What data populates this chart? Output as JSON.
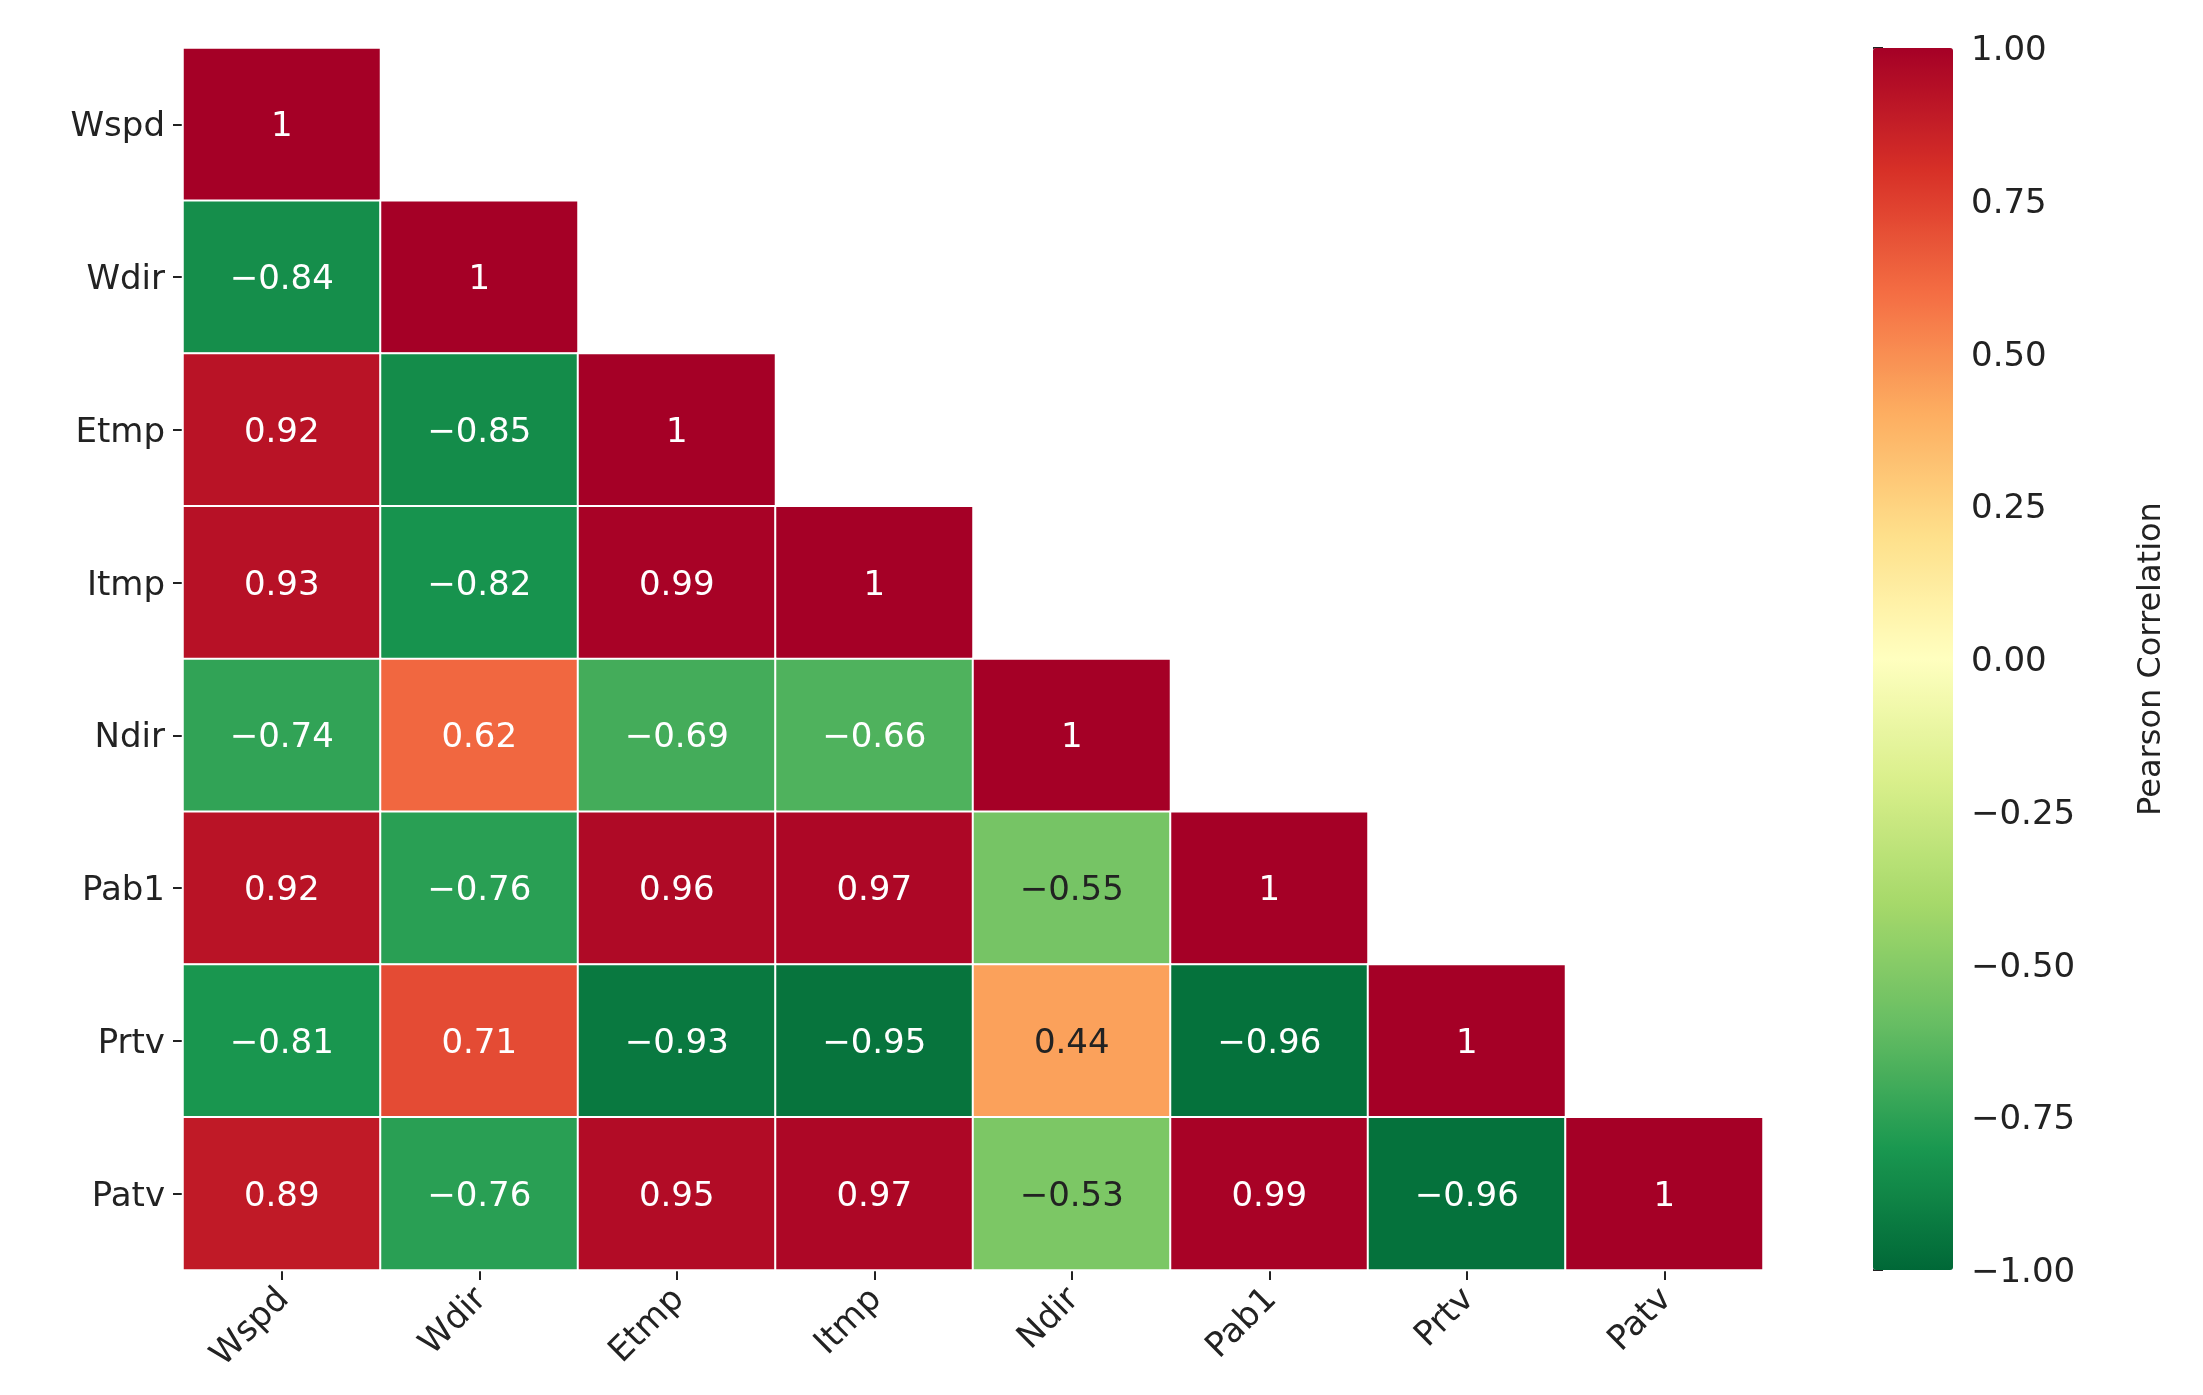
{
  "chart_data": {
    "type": "heatmap",
    "clabel": "Pearson Correlation",
    "categories": [
      "Wspd",
      "Wdir",
      "Etmp",
      "Itmp",
      "Ndir",
      "Pab1",
      "Prtv",
      "Patv"
    ],
    "y_categories": [
      "Wspd",
      "Wdir",
      "Etmp",
      "Itmp",
      "Ndir",
      "Pab1",
      "Prtv",
      "Patv"
    ],
    "cells": [
      [
        1,
        null,
        null,
        null,
        null,
        null,
        null,
        null
      ],
      [
        -0.84,
        1,
        null,
        null,
        null,
        null,
        null,
        null
      ],
      [
        0.92,
        -0.85,
        1,
        null,
        null,
        null,
        null,
        null
      ],
      [
        0.93,
        -0.82,
        0.99,
        1,
        null,
        null,
        null,
        null
      ],
      [
        -0.74,
        0.62,
        -0.69,
        -0.66,
        1,
        null,
        null,
        null
      ],
      [
        0.92,
        -0.76,
        0.96,
        0.97,
        -0.55,
        1,
        null,
        null
      ],
      [
        -0.81,
        0.71,
        -0.93,
        -0.95,
        0.44,
        -0.96,
        1,
        null
      ],
      [
        0.89,
        -0.76,
        0.95,
        0.97,
        -0.53,
        0.99,
        -0.96,
        1
      ]
    ],
    "cell_labels": [
      [
        "1",
        null,
        null,
        null,
        null,
        null,
        null,
        null
      ],
      [
        "−0.84",
        "1",
        null,
        null,
        null,
        null,
        null,
        null
      ],
      [
        "0.92",
        "−0.85",
        "1",
        null,
        null,
        null,
        null,
        null
      ],
      [
        "0.93",
        "−0.82",
        "0.99",
        "1",
        null,
        null,
        null,
        null
      ],
      [
        "−0.74",
        "0.62",
        "−0.69",
        "−0.66",
        "1",
        null,
        null,
        null
      ],
      [
        "0.92",
        "−0.76",
        "0.96",
        "0.97",
        "−0.55",
        "1",
        null,
        null
      ],
      [
        "−0.81",
        "0.71",
        "−0.93",
        "−0.95",
        "0.44",
        "−0.96",
        "1",
        null
      ],
      [
        "0.89",
        "−0.76",
        "0.95",
        "0.97",
        "−0.53",
        "0.99",
        "−0.96",
        "1"
      ]
    ],
    "clim": [
      -1,
      1
    ],
    "cticks": [
      {
        "value": 1,
        "label": "1.00"
      },
      {
        "value": 0.75,
        "label": "0.75"
      },
      {
        "value": 0.5,
        "label": "0.50"
      },
      {
        "value": 0.25,
        "label": "0.25"
      },
      {
        "value": 0,
        "label": "0.00"
      },
      {
        "value": -0.25,
        "label": "−0.25"
      },
      {
        "value": -0.5,
        "label": "−0.50"
      },
      {
        "value": -0.75,
        "label": "−0.75"
      },
      {
        "value": -1,
        "label": "−1.00"
      }
    ]
  }
}
